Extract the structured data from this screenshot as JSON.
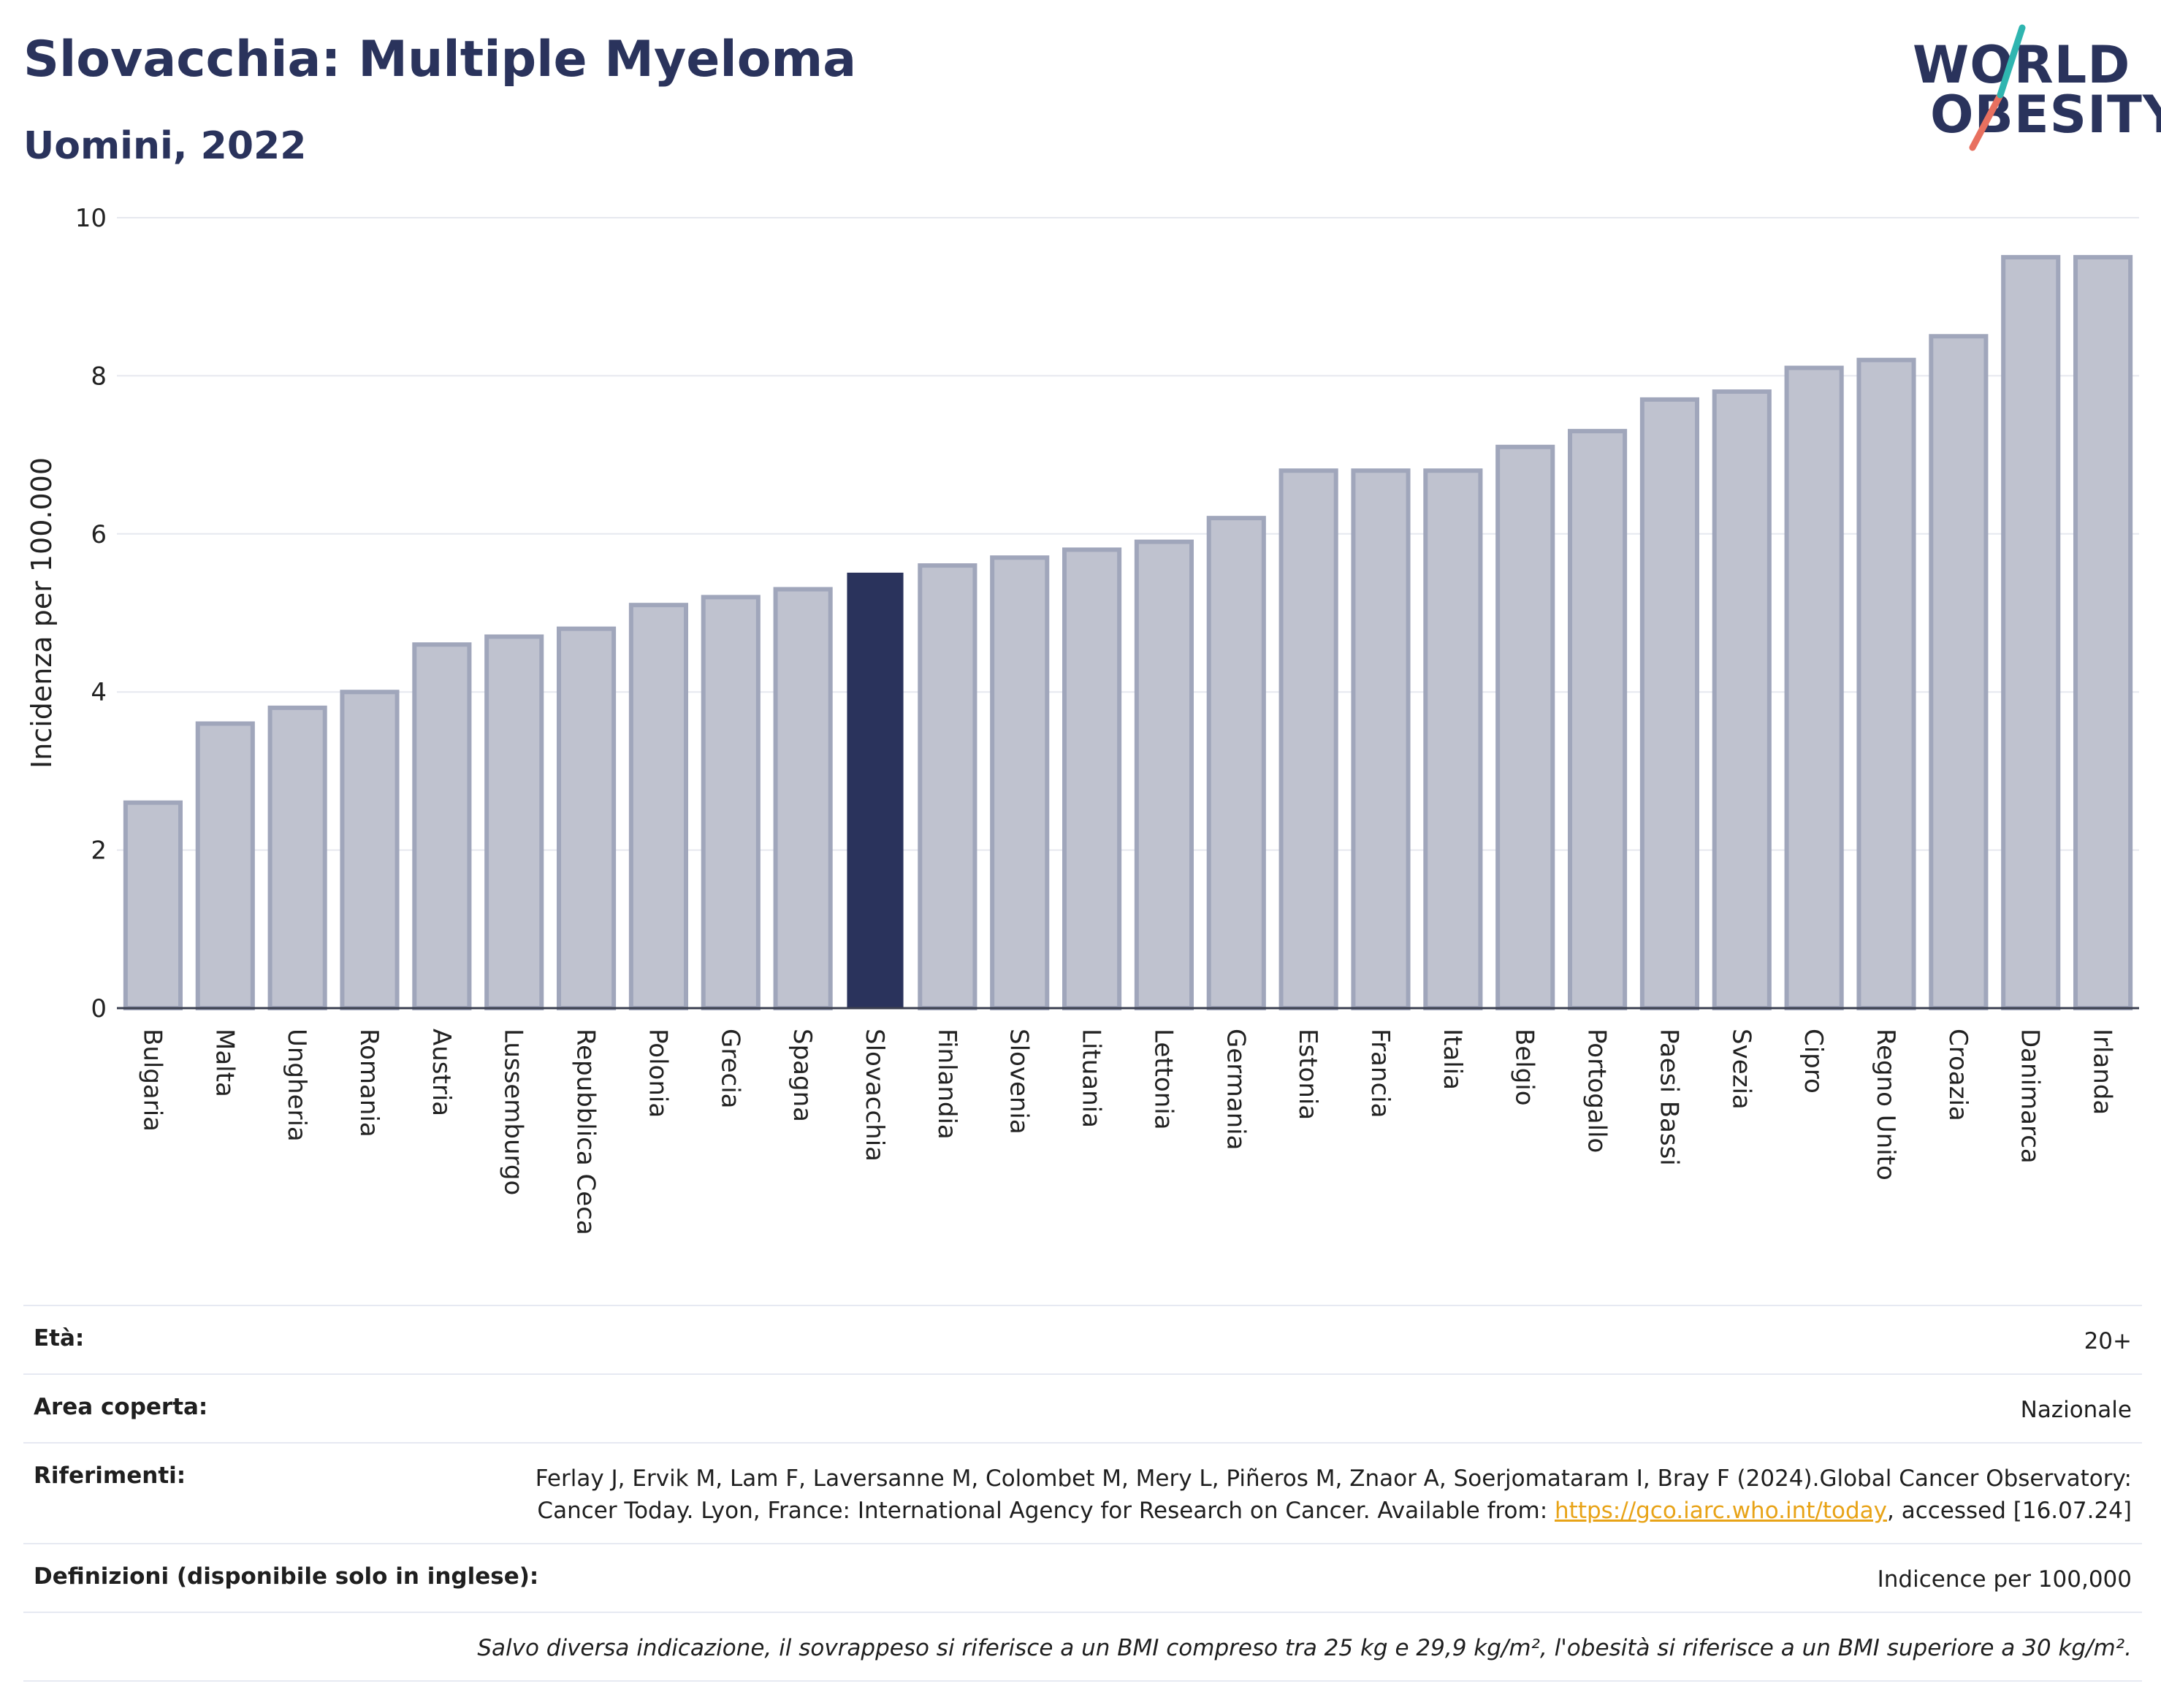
{
  "header": {
    "title": "Slovacchia: Multiple Myeloma",
    "subtitle": "Uomini, 2022",
    "logo_line1": "WORLD",
    "logo_line2": "OBESITY"
  },
  "colors": {
    "highlight": "#2a335c",
    "bar_fill": "#bfc2cf",
    "bar_stroke": "#a0a6bb",
    "title": "#2a335c",
    "logo_teal": "#2fb5b0",
    "logo_coral": "#e8705f",
    "link": "#e8a317"
  },
  "chart_data": {
    "type": "bar",
    "title": "Slovacchia: Multiple Myeloma",
    "subtitle": "Uomini, 2022",
    "ylabel": "Incidenza per 100.000",
    "xlabel": "",
    "ylim": [
      0,
      10
    ],
    "yticks": [
      0,
      2,
      4,
      6,
      8,
      10
    ],
    "grid": true,
    "highlight_category": "Slovacchia",
    "categories": [
      "Bulgaria",
      "Malta",
      "Ungheria",
      "Romania",
      "Austria",
      "Lussemburgo",
      "Repubblica Ceca",
      "Polonia",
      "Grecia",
      "Spagna",
      "Slovacchia",
      "Finlandia",
      "Slovenia",
      "Lituania",
      "Lettonia",
      "Germania",
      "Estonia",
      "Francia",
      "Italia",
      "Belgio",
      "Portogallo",
      "Paesi Bassi",
      "Svezia",
      "Cipro",
      "Regno Unito",
      "Croazia",
      "Danimarca",
      "Irlanda"
    ],
    "values": [
      2.6,
      3.6,
      3.8,
      4.0,
      4.6,
      4.7,
      4.8,
      5.1,
      5.2,
      5.3,
      5.5,
      5.6,
      5.7,
      5.8,
      5.9,
      6.2,
      6.8,
      6.8,
      6.8,
      7.1,
      7.3,
      7.7,
      7.8,
      8.1,
      8.2,
      8.5,
      9.5,
      9.5
    ]
  },
  "info": {
    "age_label": "Età:",
    "age_value": "20+",
    "area_label": "Area coperta:",
    "area_value": "Nazionale",
    "refs_label": "Riferimenti:",
    "refs_text_before": "Ferlay J, Ervik M, Lam F, Laversanne M, Colombet M, Mery L, Piñeros M, Znaor A, Soerjomataram I, Bray F (2024).Global Cancer Observatory: Cancer Today. Lyon, France: International Agency for Research on Cancer. Available from: ",
    "refs_link": "https://gco.iarc.who.int/today",
    "refs_text_after": ", accessed [16.07.24]",
    "defs_label": "Definizioni (disponibile solo in inglese):",
    "defs_value": "Indicence per 100,000",
    "note": "Salvo diversa indicazione, il sovrappeso si riferisce a un BMI compreso tra 25 kg e 29,9 kg/m², l'obesità si riferisce a un BMI superiore a 30 kg/m²."
  }
}
